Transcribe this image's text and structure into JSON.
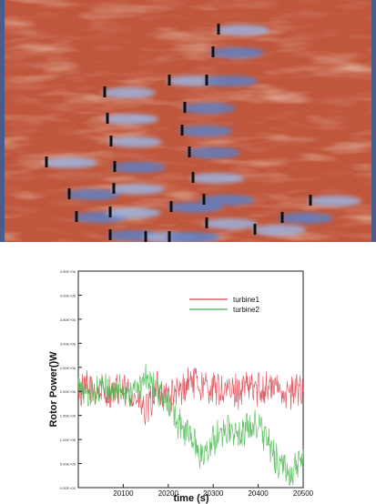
{
  "flow_visualization": {
    "colors": {
      "base": "#c0573c",
      "dark": "#a83a27",
      "light": "#e0a58c",
      "wake": "#5e7fc4",
      "wake_light": "#9cb3de",
      "frame_edge": "#4b5b8c",
      "turbine": "#101010"
    }
  },
  "chart_data": {
    "type": "line",
    "xlabel": "time (s)",
    "ylabel": "Rotor Power()W",
    "xlim": [
      20000,
      20500
    ],
    "ylim": [
      0,
      4500000
    ],
    "xticks": [
      20100,
      20200,
      20300,
      20400,
      20500
    ],
    "yticks": [
      {
        "value": 0,
        "label": "0.00E+00"
      },
      {
        "value": 500000,
        "label": "5.00E+05"
      },
      {
        "value": 1000000,
        "label": "1.00E+06"
      },
      {
        "value": 1500000,
        "label": "1.50E+06"
      },
      {
        "value": 2000000,
        "label": "2.00E+06"
      },
      {
        "value": 2500000,
        "label": "2.50E+06"
      },
      {
        "value": 3000000,
        "label": "3.00E+06"
      },
      {
        "value": 3500000,
        "label": "3.50E+06"
      },
      {
        "value": 4000000,
        "label": "4.00E+06"
      },
      {
        "value": 4500000,
        "label": "4.50E+06"
      }
    ],
    "legend_position": "top-right",
    "series": [
      {
        "name": "turbine1",
        "color": "#d9434f",
        "x": [
          20000,
          20025,
          20050,
          20075,
          20100,
          20125,
          20150,
          20175,
          20200,
          20225,
          20250,
          20275,
          20300,
          20325,
          20350,
          20375,
          20400,
          20425,
          20450,
          20475,
          20500
        ],
        "y": [
          2000000,
          2050000,
          2000000,
          1950000,
          2000000,
          1900000,
          1550000,
          2050000,
          1900000,
          1950000,
          2250000,
          2100000,
          2050000,
          2000000,
          2000000,
          2100000,
          2050000,
          2100000,
          2050000,
          1950000,
          2150000
        ]
      },
      {
        "name": "turbine2",
        "color": "#49b84f",
        "x": [
          20000,
          20025,
          20050,
          20075,
          20100,
          20125,
          20150,
          20175,
          20200,
          20225,
          20250,
          20275,
          20300,
          20325,
          20350,
          20375,
          20400,
          20425,
          20450,
          20475,
          20500
        ],
        "y": [
          2050000,
          1950000,
          2100000,
          2000000,
          2050000,
          2000000,
          2250000,
          2000000,
          1700000,
          1300000,
          1050000,
          650000,
          950000,
          1250000,
          1050000,
          1200000,
          1350000,
          850000,
          450000,
          300000,
          550000
        ]
      }
    ]
  }
}
